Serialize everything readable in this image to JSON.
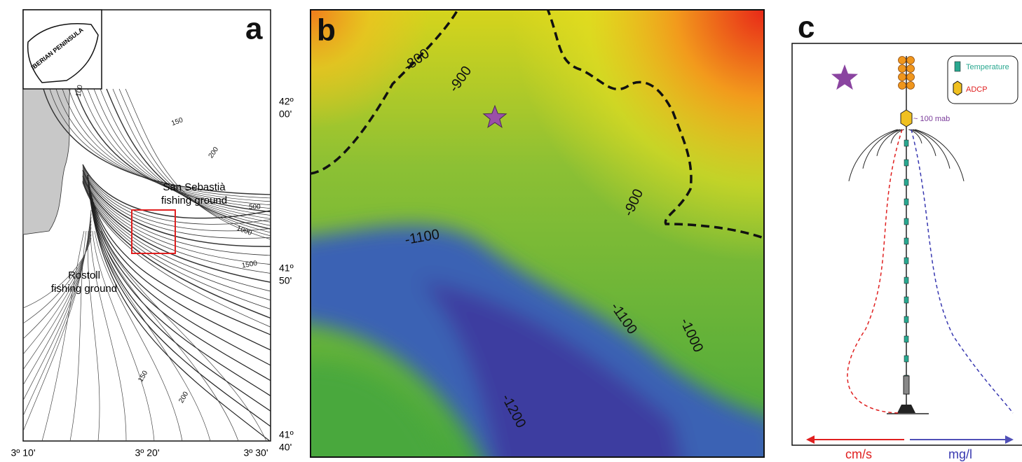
{
  "panels": {
    "a": {
      "label": "a",
      "inset": "IBERIAN PENINSULA",
      "contours": [
        "100",
        "150",
        "200",
        "500",
        "1000",
        "1500",
        "150",
        "200"
      ],
      "places": [
        "San Sebastià",
        "fishing ground",
        "Rostoll",
        "fishing ground"
      ],
      "lat_labels": [
        [
          "42º",
          "00'"
        ],
        [
          "41º",
          "50'"
        ],
        [
          "41º",
          "40'"
        ]
      ],
      "lon_labels": [
        "3º 10'",
        "3º 20'",
        "3º 30'"
      ]
    },
    "b": {
      "label": "b",
      "contours": [
        "-800",
        "-900",
        "-900",
        "-1100",
        "-1100",
        "-1000",
        "-1200"
      ]
    },
    "c": {
      "label": "c",
      "legend": [
        "Temperature",
        "ADCP"
      ],
      "mab": "~ 100 mab",
      "left_axis": "cm/s",
      "right_axis": "mg/l"
    }
  }
}
